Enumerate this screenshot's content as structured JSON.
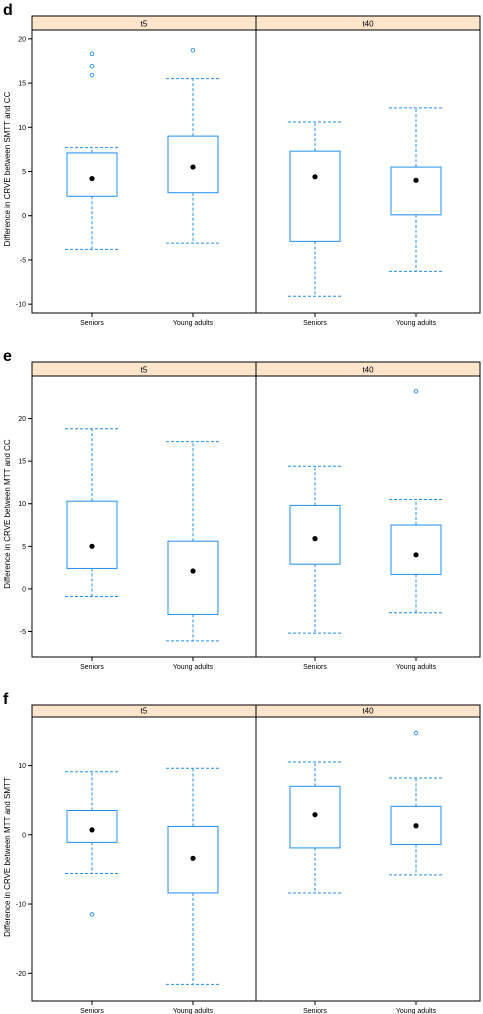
{
  "chart_data": [
    {
      "type": "box",
      "panel_label": "d",
      "ylabel": "Difference in CRVE between SMTT and CC",
      "ylim": [
        -11,
        21
      ],
      "yticks": [
        -10,
        -5,
        0,
        5,
        10,
        15,
        20
      ],
      "tick_labels": [
        "-10",
        "-5",
        "0",
        "5",
        "10",
        "15",
        "20"
      ],
      "categories": [
        "Seniors",
        "Young adults"
      ],
      "facets": [
        {
          "strip": "t5",
          "boxes": [
            {
              "category": "Seniors",
              "whisker_low": -3.8,
              "q1": 2.2,
              "median": 4.2,
              "q3": 7.1,
              "whisker_high": 7.7,
              "outliers": [
                15.9,
                16.9,
                18.3
              ]
            },
            {
              "category": "Young adults",
              "whisker_low": -3.1,
              "q1": 2.6,
              "median": 5.5,
              "q3": 9.0,
              "whisker_high": 15.5,
              "outliers": [
                18.7
              ]
            }
          ]
        },
        {
          "strip": "t40",
          "boxes": [
            {
              "category": "Seniors",
              "whisker_low": -9.1,
              "q1": -2.9,
              "median": 4.4,
              "q3": 7.3,
              "whisker_high": 10.6,
              "outliers": []
            },
            {
              "category": "Young adults",
              "whisker_low": -6.3,
              "q1": 0.1,
              "median": 4.0,
              "q3": 5.5,
              "whisker_high": 12.2,
              "outliers": []
            }
          ]
        }
      ]
    },
    {
      "type": "box",
      "panel_label": "e",
      "ylabel": "Difference in CRVE between MTT and CC",
      "ylim": [
        -8,
        25
      ],
      "yticks": [
        -5,
        0,
        5,
        10,
        15,
        20
      ],
      "tick_labels": [
        "-5",
        "0",
        "5",
        "10",
        "15",
        "20"
      ],
      "categories": [
        "Seniors",
        "Young adults"
      ],
      "facets": [
        {
          "strip": "t5",
          "boxes": [
            {
              "category": "Seniors",
              "whisker_low": -0.9,
              "q1": 2.4,
              "median": 5.0,
              "q3": 10.3,
              "whisker_high": 18.8,
              "outliers": []
            },
            {
              "category": "Young adults",
              "whisker_low": -6.1,
              "q1": -3.0,
              "median": 2.1,
              "q3": 5.6,
              "whisker_high": 17.3,
              "outliers": []
            }
          ]
        },
        {
          "strip": "t40",
          "boxes": [
            {
              "category": "Seniors",
              "whisker_low": -5.2,
              "q1": 2.9,
              "median": 5.9,
              "q3": 9.8,
              "whisker_high": 14.4,
              "outliers": []
            },
            {
              "category": "Young adults",
              "whisker_low": -2.8,
              "q1": 1.7,
              "median": 4.0,
              "q3": 7.5,
              "whisker_high": 10.5,
              "outliers": [
                23.2
              ]
            }
          ]
        }
      ]
    },
    {
      "type": "box",
      "panel_label": "f",
      "ylabel": "Difference in CRVE between MTT and SMTT",
      "ylim": [
        -24,
        17
      ],
      "yticks": [
        -20,
        -10,
        0,
        10
      ],
      "tick_labels": [
        "-20",
        "-10",
        "0",
        "10"
      ],
      "categories": [
        "Seniors",
        "Young adults"
      ],
      "facets": [
        {
          "strip": "t5",
          "boxes": [
            {
              "category": "Seniors",
              "whisker_low": -5.6,
              "q1": -1.1,
              "median": 0.7,
              "q3": 3.5,
              "whisker_high": 9.1,
              "outliers": [
                -11.5
              ]
            },
            {
              "category": "Young adults",
              "whisker_low": -21.6,
              "q1": -8.4,
              "median": -3.4,
              "q3": 1.2,
              "whisker_high": 9.6,
              "outliers": []
            }
          ]
        },
        {
          "strip": "t40",
          "boxes": [
            {
              "category": "Seniors",
              "whisker_low": -8.4,
              "q1": -1.9,
              "median": 2.9,
              "q3": 7.0,
              "whisker_high": 10.5,
              "outliers": []
            },
            {
              "category": "Young adults",
              "whisker_low": -5.8,
              "q1": -1.4,
              "median": 1.3,
              "q3": 4.1,
              "whisker_high": 8.2,
              "outliers": [
                14.7
              ]
            }
          ]
        }
      ]
    }
  ],
  "colors": {
    "box": "#1f8ef0",
    "strip_fill": "#ffe5cc",
    "median_dot": "#000000",
    "frame": "#000000"
  }
}
